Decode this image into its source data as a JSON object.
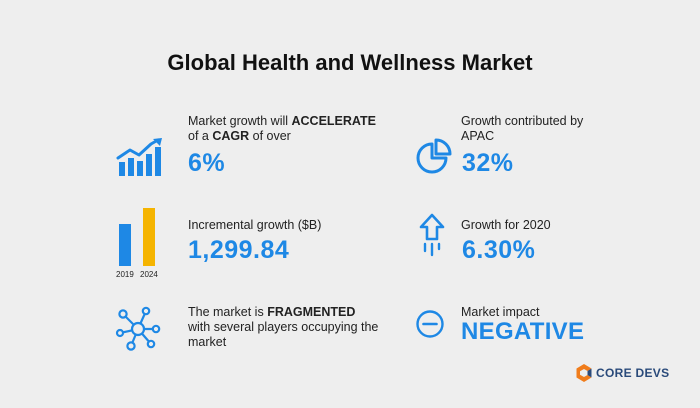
{
  "title": "Global Health and Wellness Market",
  "colors": {
    "accent": "#1e88e5",
    "yellow": "#f5b400",
    "logo_orange": "#f07c1b"
  },
  "items": {
    "cagr": {
      "line1_pre": "Market growth will ",
      "line1_bold": "ACCELERATE",
      "line2_pre": "of a ",
      "line2_bold": "CAGR",
      "line2_post": " of over",
      "value": "6%",
      "icon": "growth-chart-icon"
    },
    "apac": {
      "line1": "Growth contributed by",
      "line2": "APAC",
      "value": "32%",
      "icon": "pie-chart-icon"
    },
    "incremental": {
      "label": "Incremental growth ($B)",
      "value": "1,299.84",
      "year_start": "2019",
      "year_end": "2024",
      "icon": "bar-comparison-icon"
    },
    "growth2020": {
      "label": "Growth for 2020",
      "value": "6.30%",
      "icon": "up-arrow-icon"
    },
    "fragmented": {
      "line1_pre": "The market is ",
      "line1_bold": "FRAGMENTED",
      "line2": "with several players occupying the",
      "line3": "market",
      "icon": "network-icon"
    },
    "impact": {
      "label": "Market impact",
      "value": "NEGATIVE",
      "icon": "minus-circle-icon"
    }
  },
  "logo": {
    "text": "CORE DEVS"
  }
}
